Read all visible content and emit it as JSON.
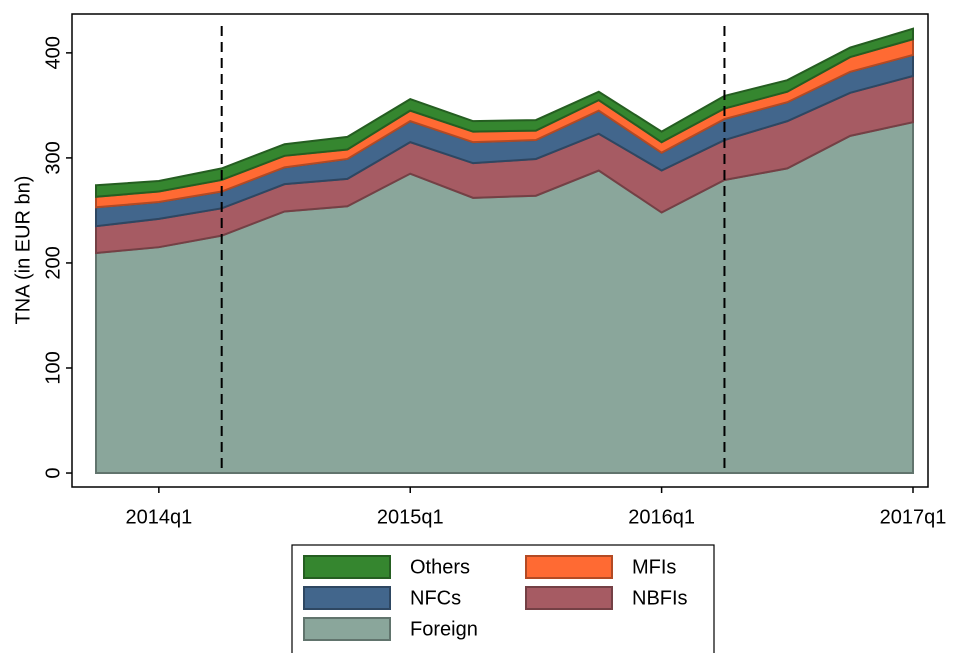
{
  "chart_data": {
    "type": "stacked_area",
    "y_label": "TNA (in EUR bn)",
    "categories": [
      null,
      "2014q1",
      null,
      null,
      null,
      "2015q1",
      null,
      null,
      null,
      "2016q1",
      null,
      null,
      null,
      "2017q1"
    ],
    "series": [
      {
        "name": "Others",
        "color": "#35862f",
        "values": [
          11,
          10,
          11,
          11,
          12,
          11,
          10,
          10,
          8,
          10,
          12,
          11,
          9,
          10
        ]
      },
      {
        "name": "MFIs",
        "color": "#ff6a33",
        "values": [
          10,
          10,
          11,
          11,
          9,
          10,
          10,
          9,
          10,
          10,
          10,
          10,
          14,
          15
        ]
      },
      {
        "name": "NFCs",
        "color": "#42668c",
        "values": [
          18,
          16,
          16,
          16,
          19,
          20,
          20,
          18,
          22,
          17,
          20,
          18,
          20,
          20
        ]
      },
      {
        "name": "NBFIs",
        "color": "#a65b63",
        "values": [
          25.5,
          27,
          26,
          26,
          26,
          30,
          33,
          35,
          35,
          40,
          38,
          45,
          41,
          44
        ]
      },
      {
        "name": "Foreign",
        "color": "#8aa69b",
        "values": [
          209.5,
          215,
          226,
          249,
          254,
          285,
          262,
          264,
          288,
          248,
          279,
          290,
          321,
          334
        ]
      }
    ],
    "vlines": [
      2,
      10
    ],
    "ylim": [
      -13.3,
      437
    ],
    "yticks": [
      0,
      100,
      200,
      300,
      400
    ]
  }
}
